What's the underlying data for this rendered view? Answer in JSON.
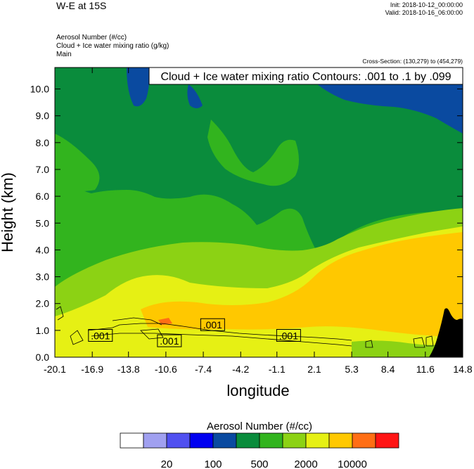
{
  "header": {
    "title": "W-E at 15S",
    "init": "Init: 2018-10-12_00:00:00",
    "valid": "Valid: 2018-10-16_06:00:00",
    "fields": [
      "Aerosol Number   (#/cc)",
      "Cloud + Ice water mixing ratio   (g/kg)",
      "Main"
    ],
    "cross_section": "Cross-Section: (130,279) to (454,279)"
  },
  "chart_data": {
    "type": "heatmap",
    "title": "",
    "contour_label": "Cloud + Ice water mixing ratio Contours: .001 to .1 by .099",
    "xlabel": "longitude",
    "ylabel": "Height (km)",
    "x_ticks": [
      "-20.1",
      "-16.9",
      "-13.8",
      "-10.6",
      "-7.4",
      "-4.2",
      "-1.1",
      "2.1",
      "5.3",
      "8.4",
      "11.6",
      "14.8"
    ],
    "y_ticks": [
      "0.0",
      "1.0",
      "2.0",
      "3.0",
      "4.0",
      "5.0",
      "6.0",
      "7.0",
      "8.0",
      "9.0",
      "10.0"
    ],
    "xlim": [
      -20.1,
      14.8
    ],
    "ylim": [
      0,
      10.8
    ],
    "contour_labels": [
      {
        "text": ".001",
        "x": -16.2,
        "y": 0.8
      },
      {
        "text": ".001",
        "x": -10.3,
        "y": 0.6
      },
      {
        "text": ".001",
        "x": -6.6,
        "y": 1.2
      },
      {
        "text": ".001",
        "x": -0.1,
        "y": 0.8
      }
    ],
    "colorbar": {
      "title": "Aerosol Number  (#/cc)",
      "colors": [
        "#ffffff",
        "#a0a0f0",
        "#5050f0",
        "#0000f0",
        "#0a4aa0",
        "#0a8c3c",
        "#32b41e",
        "#8cd214",
        "#e6f014",
        "#ffc800",
        "#ff6e14",
        "#ff1414"
      ],
      "labels": [
        {
          "text": "20",
          "boundary": 2
        },
        {
          "text": "100",
          "boundary": 4
        },
        {
          "text": "500",
          "boundary": 6
        },
        {
          "text": "2000",
          "boundary": 8
        },
        {
          "text": "10000",
          "boundary": 10
        }
      ]
    }
  }
}
